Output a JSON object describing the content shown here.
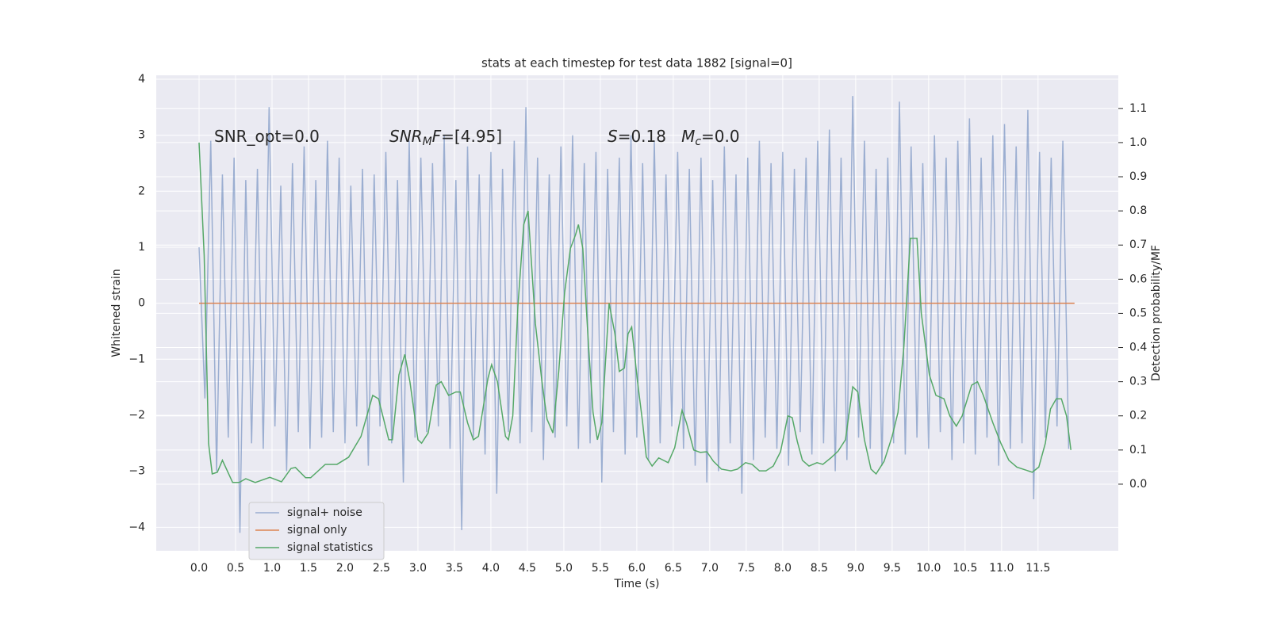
{
  "chart_data": {
    "type": "line",
    "title": "stats at each timestep for test data 1882 [signal=0]",
    "xlabel": "Time (s)",
    "ylabel": "Whitened strain",
    "y2label": "Detection probability/MF",
    "annotations": [
      [
        "SNR_opt=0.0"
      ],
      [
        "SNR",
        "M",
        "F",
        "=[4.95]"
      ],
      [
        "S",
        "=0.18   ",
        "M",
        "c",
        "=0.0"
      ]
    ],
    "xlim": [
      -0.587,
      12.6
    ],
    "ylim": [
      -4.42,
      4.07
    ],
    "y2lim": [
      -0.195,
      1.197
    ],
    "xticks": [
      {
        "value": 0,
        "label": "0.0"
      },
      0.5,
      {
        "value": 1,
        "label": "1.0"
      },
      1.5,
      {
        "value": 2,
        "label": "2.0"
      },
      2.5,
      {
        "value": 3,
        "label": "3.0"
      },
      3.5,
      {
        "value": 4,
        "label": "4.0"
      },
      4.5,
      {
        "value": 5,
        "label": "5.0"
      },
      5.5,
      {
        "value": 6,
        "label": "6.0"
      },
      6.5,
      {
        "value": 7,
        "label": "7.0"
      },
      7.5,
      {
        "value": 8,
        "label": "8.0"
      },
      8.5,
      {
        "value": 9,
        "label": "9.0"
      },
      9.5,
      {
        "value": 10,
        "label": "10.0"
      },
      10.5,
      {
        "value": 11,
        "label": "11.0"
      },
      11.5
    ],
    "yticks": [
      {
        "value": -4,
        "label": "−4"
      },
      {
        "value": -3,
        "label": "−3"
      },
      {
        "value": -2,
        "label": "−2"
      },
      {
        "value": -1,
        "label": "−1"
      },
      0,
      1,
      2,
      3,
      4
    ],
    "y2ticks": [
      {
        "value": 0,
        "label": "0.0"
      },
      0.1,
      0.2,
      0.3,
      0.4,
      0.5,
      0.6,
      0.7,
      0.8,
      0.9,
      {
        "value": 1,
        "label": "1.0"
      },
      1.1
    ],
    "grid": true,
    "legend": "lower left",
    "series": [
      {
        "name": "signal+ noise",
        "color": "#4c72b0",
        "alpha": 0.5,
        "x": [
          0,
          0.08,
          0.16,
          0.24,
          0.32,
          0.4,
          0.48,
          0.56,
          0.64,
          0.72,
          0.8,
          0.88,
          0.96,
          1.04,
          1.12,
          1.2,
          1.28,
          1.36,
          1.44,
          1.52,
          1.6,
          1.68,
          1.76,
          1.84,
          1.92,
          2,
          2.08,
          2.16,
          2.24,
          2.32,
          2.4,
          2.48,
          2.56,
          2.64,
          2.72,
          2.8,
          2.88,
          2.96,
          3.04,
          3.12,
          3.2,
          3.28,
          3.36,
          3.44,
          3.52,
          3.6,
          3.68,
          3.76,
          3.84,
          3.92,
          4,
          4.08,
          4.16,
          4.24,
          4.32,
          4.4,
          4.48,
          4.56,
          4.64,
          4.72,
          4.8,
          4.88,
          4.96,
          5.04,
          5.12,
          5.2,
          5.28,
          5.36,
          5.44,
          5.52,
          5.6,
          5.68,
          5.76,
          5.84,
          5.92,
          6,
          6.08,
          6.16,
          6.24,
          6.32,
          6.4,
          6.48,
          6.56,
          6.64,
          6.72,
          6.8,
          6.88,
          6.96,
          7.04,
          7.12,
          7.2,
          7.28,
          7.36,
          7.44,
          7.52,
          7.6,
          7.68,
          7.76,
          7.84,
          7.92,
          8,
          8.08,
          8.16,
          8.24,
          8.32,
          8.4,
          8.48,
          8.56,
          8.64,
          8.72,
          8.8,
          8.88,
          8.96,
          9.04,
          9.12,
          9.2,
          9.28,
          9.36,
          9.44,
          9.52,
          9.6,
          9.68,
          9.76,
          9.84,
          9.92,
          10,
          10.08,
          10.16,
          10.24,
          10.32,
          10.4,
          10.48,
          10.56,
          10.64,
          10.72,
          10.8,
          10.88,
          10.96,
          11.04,
          11.12,
          11.2,
          11.28,
          11.36,
          11.44,
          11.52,
          11.6,
          11.68,
          11.76,
          11.84,
          11.92
        ],
        "values": [
          1.0,
          -1.7,
          2.9,
          -3.0,
          2.3,
          -2.4,
          2.6,
          -4.1,
          2.2,
          -2.5,
          2.4,
          -2.6,
          3.5,
          -2.2,
          2.1,
          -3.0,
          2.5,
          -2.3,
          2.8,
          -2.6,
          2.2,
          -2.4,
          2.9,
          -2.3,
          2.6,
          -2.5,
          2.1,
          -2.2,
          2.4,
          -2.9,
          2.3,
          -2.2,
          2.7,
          -2.5,
          2.2,
          -3.2,
          2.9,
          -2.4,
          2.6,
          -2.3,
          2.5,
          -2.2,
          3.0,
          -2.6,
          2.2,
          -4.05,
          2.8,
          -2.4,
          2.3,
          -2.7,
          2.7,
          -3.4,
          2.4,
          -2.3,
          2.9,
          -2.5,
          3.5,
          -2.3,
          2.6,
          -2.8,
          2.3,
          -2.4,
          2.8,
          -2.2,
          3.0,
          -2.6,
          2.5,
          -2.5,
          2.7,
          -3.2,
          2.4,
          -2.3,
          2.6,
          -2.7,
          3.0,
          -2.4,
          2.5,
          -2.8,
          2.9,
          -2.5,
          2.3,
          -2.2,
          2.7,
          -2.6,
          2.4,
          -2.9,
          2.6,
          -3.2,
          2.2,
          -3.0,
          2.8,
          -2.5,
          2.3,
          -3.4,
          2.6,
          -2.8,
          2.9,
          -2.4,
          2.5,
          -2.6,
          2.7,
          -2.9,
          2.4,
          -2.3,
          2.6,
          -2.7,
          2.9,
          -2.5,
          3.1,
          -3.0,
          2.6,
          -2.8,
          3.7,
          -2.4,
          2.9,
          -2.6,
          2.4,
          -2.9,
          2.6,
          -2.5,
          3.6,
          -2.7,
          2.8,
          -2.4,
          2.5,
          -2.6,
          3.0,
          -2.3,
          2.6,
          -2.8,
          2.9,
          -2.5,
          3.3,
          -2.7,
          2.6,
          -2.4,
          3.0,
          -2.9,
          3.2,
          -2.6,
          2.8,
          -2.5,
          3.45,
          -3.5,
          2.7,
          -2.4,
          2.6,
          -2.2,
          2.9,
          -2.6
        ]
      },
      {
        "name": "signal only",
        "color": "#dd8452",
        "x": [
          0,
          12
        ],
        "values": [
          0,
          0
        ]
      },
      {
        "name": "signal statistics",
        "color": "#55a868",
        "axis": "y2",
        "x": [
          0,
          0.07,
          0.13,
          0.18,
          0.25,
          0.32,
          0.46,
          0.55,
          0.64,
          0.77,
          0.97,
          1.13,
          1.26,
          1.32,
          1.46,
          1.53,
          1.73,
          1.89,
          2.05,
          2.22,
          2.38,
          2.46,
          2.6,
          2.65,
          2.74,
          2.82,
          2.89,
          3.0,
          3.05,
          3.14,
          3.25,
          3.32,
          3.42,
          3.52,
          3.58,
          3.68,
          3.76,
          3.83,
          3.96,
          4.01,
          4.09,
          4.2,
          4.24,
          4.3,
          4.37,
          4.45,
          4.51,
          4.61,
          4.7,
          4.77,
          4.85,
          4.93,
          5.01,
          5.09,
          5.16,
          5.2,
          5.26,
          5.34,
          5.4,
          5.46,
          5.52,
          5.62,
          5.7,
          5.76,
          5.83,
          5.88,
          5.93,
          6.01,
          6.08,
          6.13,
          6.21,
          6.3,
          6.43,
          6.52,
          6.62,
          6.68,
          6.78,
          6.87,
          6.96,
          7.05,
          7.16,
          7.29,
          7.38,
          7.49,
          7.58,
          7.68,
          7.77,
          7.87,
          7.97,
          8.07,
          8.13,
          8.2,
          8.27,
          8.36,
          8.47,
          8.55,
          8.66,
          8.76,
          8.86,
          8.96,
          9.03,
          9.12,
          9.21,
          9.28,
          9.39,
          9.5,
          9.58,
          9.66,
          9.75,
          9.84,
          9.9,
          10.01,
          10.1,
          10.21,
          10.29,
          10.38,
          10.46,
          10.59,
          10.67,
          10.75,
          10.88,
          10.99,
          11.1,
          11.21,
          11.35,
          11.42,
          11.51,
          11.6,
          11.67,
          11.75,
          11.82,
          11.89,
          11.95
        ],
        "values": [
          1.0,
          0.67,
          0.12,
          0.03,
          0.035,
          0.07,
          0.005,
          0.005,
          0.016,
          0.005,
          0.02,
          0.007,
          0.046,
          0.049,
          0.019,
          0.019,
          0.058,
          0.058,
          0.079,
          0.14,
          0.26,
          0.25,
          0.13,
          0.13,
          0.32,
          0.38,
          0.3,
          0.13,
          0.12,
          0.15,
          0.29,
          0.3,
          0.26,
          0.27,
          0.27,
          0.18,
          0.13,
          0.14,
          0.31,
          0.35,
          0.3,
          0.14,
          0.13,
          0.2,
          0.52,
          0.76,
          0.8,
          0.47,
          0.3,
          0.19,
          0.15,
          0.33,
          0.56,
          0.69,
          0.73,
          0.76,
          0.69,
          0.4,
          0.21,
          0.13,
          0.18,
          0.53,
          0.44,
          0.33,
          0.34,
          0.44,
          0.46,
          0.3,
          0.18,
          0.08,
          0.053,
          0.077,
          0.063,
          0.107,
          0.216,
          0.18,
          0.1,
          0.093,
          0.095,
          0.067,
          0.044,
          0.039,
          0.044,
          0.063,
          0.058,
          0.039,
          0.039,
          0.053,
          0.095,
          0.2,
          0.195,
          0.125,
          0.07,
          0.053,
          0.063,
          0.058,
          0.077,
          0.097,
          0.13,
          0.285,
          0.27,
          0.13,
          0.044,
          0.03,
          0.067,
          0.14,
          0.21,
          0.4,
          0.72,
          0.72,
          0.5,
          0.32,
          0.26,
          0.25,
          0.2,
          0.17,
          0.2,
          0.29,
          0.3,
          0.26,
          0.18,
          0.12,
          0.07,
          0.05,
          0.04,
          0.035,
          0.05,
          0.12,
          0.22,
          0.25,
          0.25,
          0.2,
          0.1
        ]
      }
    ]
  }
}
